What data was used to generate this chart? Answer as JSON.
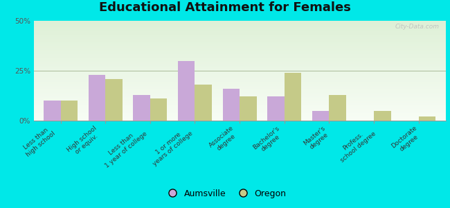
{
  "title": "Educational Attainment for Females",
  "categories": [
    "Less than\nhigh school",
    "High school\nor equiv.",
    "Less than\n1 year of college",
    "1 or more\nyears of college",
    "Associate\ndegree",
    "Bachelor's\ndegree",
    "Master's\ndegree",
    "Profess.\nschool degree",
    "Doctorate\ndegree"
  ],
  "aumsville": [
    10,
    23,
    13,
    30,
    16,
    12,
    5,
    0,
    0
  ],
  "oregon": [
    10,
    21,
    11,
    18,
    12,
    24,
    13,
    5,
    2
  ],
  "aumsville_color": "#c9a8d8",
  "oregon_color": "#c5ca88",
  "outer_bg": "#00e8e8",
  "plot_bg_top": "#dff0d8",
  "plot_bg_bottom": "#f0faf0",
  "ylim": [
    0,
    50
  ],
  "yticks": [
    0,
    25,
    50
  ],
  "ytick_labels": [
    "0%",
    "25%",
    "50%"
  ],
  "bar_width": 0.38,
  "title_fontsize": 13,
  "tick_fontsize": 6.5,
  "legend_fontsize": 9,
  "watermark": "City-Data.com"
}
